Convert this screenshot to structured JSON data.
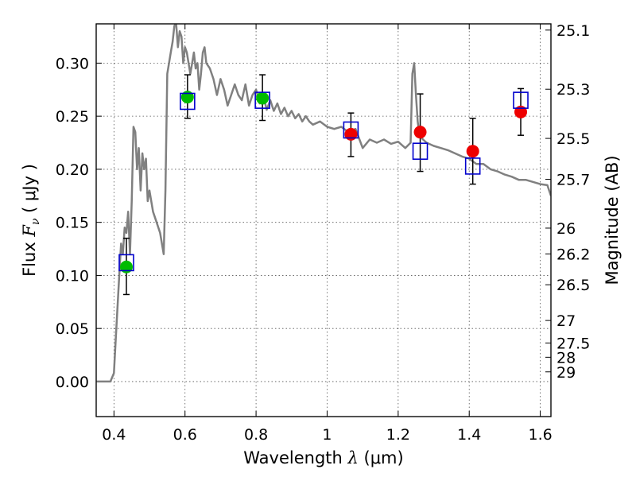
{
  "chart_data": {
    "type": "scatter",
    "xlabel": "Wavelength  λ (μm)",
    "xlabel_parts": {
      "prefix": "Wavelength  ",
      "symbol": "λ",
      "suffix": " (μm)"
    },
    "ylabel": "Flux  Fν  ( μJy )",
    "ylabel_parts": {
      "prefix": "Flux  ",
      "symbol": "F",
      "subscript": "ν",
      "suffix": "  ( μJy )"
    },
    "y2label": "Magnitude (AB)",
    "xlim": [
      0.35,
      1.63
    ],
    "ylim": [
      -0.033,
      0.337
    ],
    "x_ticks": [
      0.4,
      0.6,
      0.8,
      1.0,
      1.2,
      1.4,
      1.6
    ],
    "x_tick_labels": [
      "0.4",
      "0.6",
      "0.8",
      "1",
      "1.2",
      "1.4",
      "1.6"
    ],
    "y_ticks": [
      0.0,
      0.05,
      0.1,
      0.15,
      0.2,
      0.25,
      0.3
    ],
    "y_tick_labels": [
      "0.00",
      "0.05",
      "0.10",
      "0.15",
      "0.20",
      "0.25",
      "0.30"
    ],
    "y2_ticks": [
      25.1,
      25.3,
      25.5,
      25.7,
      26,
      26.2,
      26.5,
      27,
      27.5,
      28,
      29
    ],
    "y2_tick_labels": [
      "25.1",
      "25.3",
      "25.5",
      "25.7",
      "26",
      "26.2",
      "26.5",
      "27",
      "27.5",
      "28",
      "29"
    ],
    "grid": true,
    "colors": {
      "model": "#808080",
      "green": "#00bb00",
      "red": "#ee0000",
      "box": "#0000cc",
      "error": "#000000",
      "grid": "#555555"
    },
    "model_spectrum": {
      "name": "",
      "x": [
        0.35,
        0.39,
        0.4,
        0.405,
        0.41,
        0.415,
        0.42,
        0.425,
        0.43,
        0.435,
        0.44,
        0.445,
        0.45,
        0.455,
        0.46,
        0.465,
        0.47,
        0.475,
        0.48,
        0.485,
        0.49,
        0.495,
        0.5,
        0.51,
        0.52,
        0.53,
        0.54,
        0.545,
        0.55,
        0.555,
        0.56,
        0.565,
        0.57,
        0.575,
        0.58,
        0.585,
        0.59,
        0.595,
        0.6,
        0.605,
        0.61,
        0.615,
        0.62,
        0.625,
        0.63,
        0.635,
        0.64,
        0.645,
        0.65,
        0.655,
        0.66,
        0.67,
        0.68,
        0.69,
        0.7,
        0.71,
        0.72,
        0.73,
        0.74,
        0.75,
        0.76,
        0.77,
        0.78,
        0.79,
        0.8,
        0.81,
        0.82,
        0.83,
        0.84,
        0.85,
        0.86,
        0.87,
        0.88,
        0.89,
        0.9,
        0.91,
        0.92,
        0.93,
        0.94,
        0.95,
        0.96,
        0.98,
        1.0,
        1.02,
        1.04,
        1.06,
        1.08,
        1.1,
        1.12,
        1.14,
        1.16,
        1.18,
        1.2,
        1.22,
        1.235,
        1.24,
        1.245,
        1.25,
        1.255,
        1.26,
        1.27,
        1.28,
        1.3,
        1.32,
        1.34,
        1.36,
        1.38,
        1.4,
        1.42,
        1.44,
        1.46,
        1.48,
        1.5,
        1.52,
        1.54,
        1.56,
        1.58,
        1.6,
        1.62,
        1.63
      ],
      "y": [
        0.0,
        0.0,
        0.008,
        0.04,
        0.07,
        0.1,
        0.13,
        0.12,
        0.145,
        0.14,
        0.16,
        0.12,
        0.17,
        0.24,
        0.235,
        0.2,
        0.22,
        0.18,
        0.215,
        0.2,
        0.21,
        0.17,
        0.18,
        0.16,
        0.15,
        0.14,
        0.12,
        0.18,
        0.29,
        0.3,
        0.31,
        0.32,
        0.335,
        0.338,
        0.315,
        0.33,
        0.325,
        0.3,
        0.315,
        0.31,
        0.3,
        0.29,
        0.3,
        0.31,
        0.295,
        0.3,
        0.275,
        0.29,
        0.31,
        0.315,
        0.3,
        0.295,
        0.285,
        0.27,
        0.285,
        0.275,
        0.26,
        0.27,
        0.28,
        0.27,
        0.265,
        0.28,
        0.26,
        0.27,
        0.275,
        0.262,
        0.27,
        0.256,
        0.265,
        0.255,
        0.262,
        0.252,
        0.258,
        0.25,
        0.255,
        0.248,
        0.252,
        0.245,
        0.25,
        0.245,
        0.242,
        0.245,
        0.24,
        0.238,
        0.24,
        0.235,
        0.238,
        0.22,
        0.228,
        0.225,
        0.228,
        0.224,
        0.226,
        0.22,
        0.225,
        0.29,
        0.3,
        0.27,
        0.245,
        0.232,
        0.228,
        0.225,
        0.222,
        0.22,
        0.218,
        0.215,
        0.212,
        0.21,
        0.205,
        0.205,
        0.2,
        0.198,
        0.195,
        0.193,
        0.19,
        0.19,
        0.188,
        0.186,
        0.185,
        0.175
      ]
    },
    "green_points": {
      "name": "",
      "x": [
        0.435,
        0.607,
        0.818
      ],
      "y": [
        0.108,
        0.268,
        0.267
      ]
    },
    "red_points": {
      "name": "",
      "x": [
        1.067,
        1.262,
        1.41,
        1.545
      ],
      "y": [
        0.233,
        0.235,
        0.217,
        0.254
      ]
    },
    "boxes": {
      "name": "",
      "x": [
        0.435,
        0.607,
        0.818,
        1.067,
        1.262,
        1.41,
        1.545
      ],
      "y": [
        0.112,
        0.264,
        0.265,
        0.237,
        0.217,
        0.203,
        0.265
      ]
    },
    "error_bars": {
      "x": [
        0.435,
        0.607,
        0.818,
        1.067,
        1.262,
        1.41,
        1.545
      ],
      "low": [
        0.082,
        0.248,
        0.246,
        0.212,
        0.198,
        0.186,
        0.232
      ],
      "high": [
        0.135,
        0.289,
        0.289,
        0.253,
        0.271,
        0.248,
        0.276
      ]
    }
  }
}
